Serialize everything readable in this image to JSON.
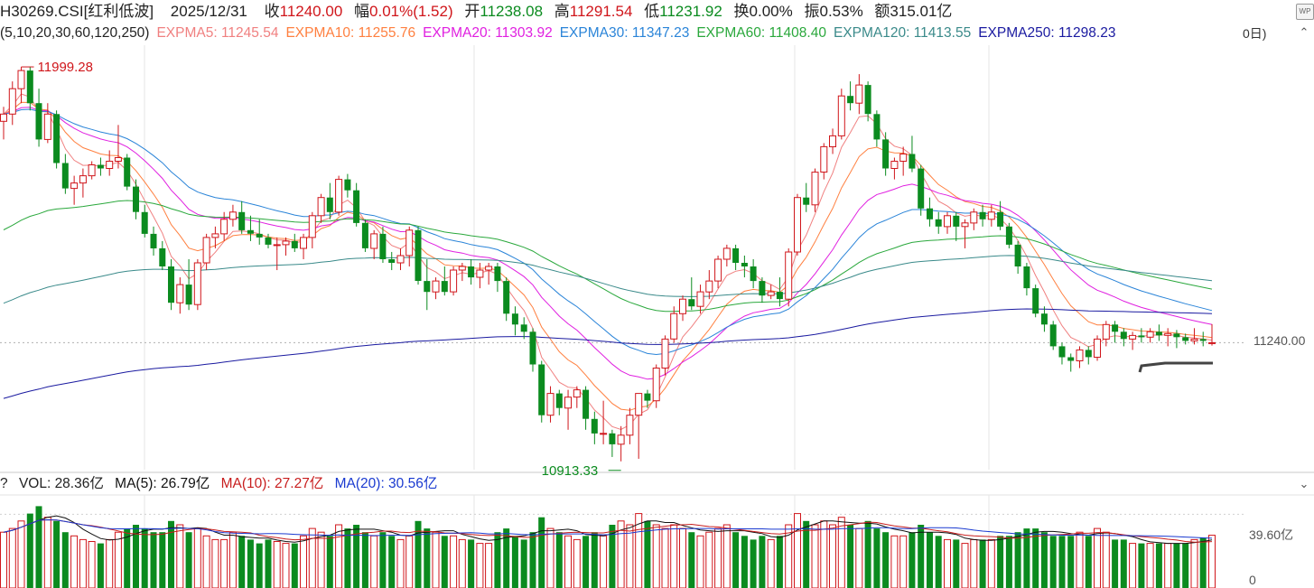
{
  "header": {
    "code": "H30269.CSI[红利低波]",
    "date": "2025/12/31",
    "close_label": "收",
    "close": "11240.00",
    "change_label": "幅",
    "change": "0.01%(1.52)",
    "open_label": "开",
    "open": "11238.08",
    "high_label": "高",
    "high": "11291.54",
    "low_label": "低",
    "low": "11231.92",
    "turnover_label": "换",
    "turnover": "0.00%",
    "amplitude_label": "振",
    "amplitude": "0.53%",
    "amount_label": "额",
    "amount": "315.01亿"
  },
  "ma_line": {
    "params": "(5,10,20,30,60,120,250)",
    "items": [
      {
        "label": "EXPMA5: 11245.54",
        "color": "#f08080"
      },
      {
        "label": "EXPMA10: 11255.76",
        "color": "#ff8040"
      },
      {
        "label": "EXPMA20: 11303.92",
        "color": "#e020e0"
      },
      {
        "label": "EXPMA30: 11347.23",
        "color": "#2a84d8"
      },
      {
        "label": "EXPMA60: 11408.40",
        "color": "#2aa83c"
      },
      {
        "label": "EXPMA120: 11413.55",
        "color": "#3a8a8a"
      },
      {
        "label": "EXPMA250: 11298.23",
        "color": "#1a1aa0"
      }
    ],
    "period_tail": "0日)"
  },
  "volume_line": {
    "prefix": "?",
    "vol": "VOL: 28.36亿",
    "ma5": "MA(5): 26.79亿",
    "ma10": "MA(10): 27.27亿",
    "ma20": "MA(20): 30.56亿"
  },
  "icons": {
    "wp": "WP",
    "chev_up": "⌃",
    "chev_down": "⌄"
  },
  "axis": {
    "price_label": "11240.00",
    "vol_label": "39.60亿",
    "vol_zero": "0"
  },
  "annotations": {
    "high": "11999.28",
    "low": "10913.33"
  },
  "colors": {
    "up": "#d0161b",
    "down": "#0b8b1f",
    "ema5": "#f08080",
    "ema10": "#ff8040",
    "ema20": "#e020e0",
    "ema30": "#2a84d8",
    "ema60": "#2aa83c",
    "ema120": "#3a8a8a",
    "ema250": "#1a1aa0",
    "vma5": "#111111",
    "vma10": "#c81e1e",
    "vma20": "#1a3ad0"
  },
  "chart_data": {
    "type": "candlestick",
    "title": "H30269.CSI[红利低波]",
    "ylim": [
      10890,
      12035
    ],
    "vol_ylim": [
      0,
      50
    ],
    "candles": [
      {
        "o": 11850,
        "h": 11890,
        "l": 11800,
        "c": 11870,
        "v": 30
      },
      {
        "o": 11870,
        "h": 11960,
        "l": 11840,
        "c": 11940,
        "v": 32
      },
      {
        "o": 11940,
        "h": 12000,
        "l": 11900,
        "c": 11990,
        "v": 36
      },
      {
        "o": 11990,
        "h": 11999,
        "l": 11880,
        "c": 11900,
        "v": 40
      },
      {
        "o": 11900,
        "h": 11940,
        "l": 11780,
        "c": 11800,
        "v": 44
      },
      {
        "o": 11800,
        "h": 11900,
        "l": 11790,
        "c": 11870,
        "v": 38
      },
      {
        "o": 11870,
        "h": 11880,
        "l": 11720,
        "c": 11735,
        "v": 36
      },
      {
        "o": 11735,
        "h": 11760,
        "l": 11650,
        "c": 11665,
        "v": 30
      },
      {
        "o": 11665,
        "h": 11700,
        "l": 11620,
        "c": 11680,
        "v": 28
      },
      {
        "o": 11680,
        "h": 11720,
        "l": 11640,
        "c": 11700,
        "v": 26
      },
      {
        "o": 11700,
        "h": 11740,
        "l": 11690,
        "c": 11730,
        "v": 25
      },
      {
        "o": 11730,
        "h": 11750,
        "l": 11700,
        "c": 11720,
        "v": 24
      },
      {
        "o": 11720,
        "h": 11770,
        "l": 11700,
        "c": 11740,
        "v": 26
      },
      {
        "o": 11740,
        "h": 11840,
        "l": 11720,
        "c": 11750,
        "v": 30
      },
      {
        "o": 11750,
        "h": 11760,
        "l": 11660,
        "c": 11670,
        "v": 32
      },
      {
        "o": 11670,
        "h": 11690,
        "l": 11580,
        "c": 11600,
        "v": 34
      },
      {
        "o": 11600,
        "h": 11620,
        "l": 11530,
        "c": 11540,
        "v": 32
      },
      {
        "o": 11540,
        "h": 11560,
        "l": 11480,
        "c": 11500,
        "v": 30
      },
      {
        "o": 11500,
        "h": 11520,
        "l": 11440,
        "c": 11450,
        "v": 30
      },
      {
        "o": 11450,
        "h": 11470,
        "l": 11330,
        "c": 11350,
        "v": 36
      },
      {
        "o": 11350,
        "h": 11420,
        "l": 11320,
        "c": 11400,
        "v": 34
      },
      {
        "o": 11400,
        "h": 11470,
        "l": 11330,
        "c": 11345,
        "v": 30
      },
      {
        "o": 11345,
        "h": 11470,
        "l": 11330,
        "c": 11460,
        "v": 32
      },
      {
        "o": 11460,
        "h": 11540,
        "l": 11440,
        "c": 11530,
        "v": 28
      },
      {
        "o": 11530,
        "h": 11560,
        "l": 11500,
        "c": 11540,
        "v": 26
      },
      {
        "o": 11540,
        "h": 11600,
        "l": 11520,
        "c": 11580,
        "v": 26
      },
      {
        "o": 11580,
        "h": 11620,
        "l": 11560,
        "c": 11600,
        "v": 30
      },
      {
        "o": 11600,
        "h": 11630,
        "l": 11540,
        "c": 11550,
        "v": 28
      },
      {
        "o": 11550,
        "h": 11590,
        "l": 11520,
        "c": 11540,
        "v": 26
      },
      {
        "o": 11540,
        "h": 11580,
        "l": 11510,
        "c": 11530,
        "v": 24
      },
      {
        "o": 11530,
        "h": 11540,
        "l": 11500,
        "c": 11510,
        "v": 26
      },
      {
        "o": 11510,
        "h": 11530,
        "l": 11440,
        "c": 11510,
        "v": 25
      },
      {
        "o": 11510,
        "h": 11530,
        "l": 11480,
        "c": 11520,
        "v": 24
      },
      {
        "o": 11520,
        "h": 11540,
        "l": 11490,
        "c": 11500,
        "v": 24
      },
      {
        "o": 11500,
        "h": 11540,
        "l": 11470,
        "c": 11530,
        "v": 28
      },
      {
        "o": 11530,
        "h": 11600,
        "l": 11500,
        "c": 11590,
        "v": 32
      },
      {
        "o": 11590,
        "h": 11650,
        "l": 11570,
        "c": 11640,
        "v": 30
      },
      {
        "o": 11640,
        "h": 11680,
        "l": 11580,
        "c": 11600,
        "v": 28
      },
      {
        "o": 11600,
        "h": 11700,
        "l": 11590,
        "c": 11690,
        "v": 34
      },
      {
        "o": 11690,
        "h": 11705,
        "l": 11640,
        "c": 11660,
        "v": 32
      },
      {
        "o": 11660,
        "h": 11680,
        "l": 11560,
        "c": 11570,
        "v": 34
      },
      {
        "o": 11570,
        "h": 11580,
        "l": 11490,
        "c": 11500,
        "v": 30
      },
      {
        "o": 11500,
        "h": 11550,
        "l": 11470,
        "c": 11540,
        "v": 28
      },
      {
        "o": 11540,
        "h": 11560,
        "l": 11460,
        "c": 11470,
        "v": 30
      },
      {
        "o": 11470,
        "h": 11490,
        "l": 11440,
        "c": 11460,
        "v": 28
      },
      {
        "o": 11460,
        "h": 11500,
        "l": 11440,
        "c": 11480,
        "v": 26
      },
      {
        "o": 11480,
        "h": 11560,
        "l": 11450,
        "c": 11550,
        "v": 28
      },
      {
        "o": 11550,
        "h": 11560,
        "l": 11400,
        "c": 11410,
        "v": 36
      },
      {
        "o": 11410,
        "h": 11470,
        "l": 11330,
        "c": 11380,
        "v": 32
      },
      {
        "o": 11380,
        "h": 11420,
        "l": 11360,
        "c": 11410,
        "v": 30
      },
      {
        "o": 11410,
        "h": 11450,
        "l": 11370,
        "c": 11380,
        "v": 28
      },
      {
        "o": 11380,
        "h": 11450,
        "l": 11370,
        "c": 11440,
        "v": 28
      },
      {
        "o": 11440,
        "h": 11460,
        "l": 11410,
        "c": 11450,
        "v": 26
      },
      {
        "o": 11450,
        "h": 11470,
        "l": 11400,
        "c": 11420,
        "v": 26
      },
      {
        "o": 11420,
        "h": 11460,
        "l": 11390,
        "c": 11440,
        "v": 24
      },
      {
        "o": 11440,
        "h": 11460,
        "l": 11400,
        "c": 11450,
        "v": 24
      },
      {
        "o": 11450,
        "h": 11460,
        "l": 11380,
        "c": 11410,
        "v": 30
      },
      {
        "o": 11410,
        "h": 11420,
        "l": 11300,
        "c": 11320,
        "v": 32
      },
      {
        "o": 11320,
        "h": 11340,
        "l": 11260,
        "c": 11290,
        "v": 28
      },
      {
        "o": 11290,
        "h": 11310,
        "l": 11250,
        "c": 11270,
        "v": 26
      },
      {
        "o": 11270,
        "h": 11280,
        "l": 11160,
        "c": 11180,
        "v": 30
      },
      {
        "o": 11180,
        "h": 11190,
        "l": 11020,
        "c": 11040,
        "v": 38
      },
      {
        "o": 11040,
        "h": 11120,
        "l": 11020,
        "c": 11100,
        "v": 32
      },
      {
        "o": 11100,
        "h": 11110,
        "l": 11040,
        "c": 11060,
        "v": 30
      },
      {
        "o": 11060,
        "h": 11110,
        "l": 11000,
        "c": 11090,
        "v": 28
      },
      {
        "o": 11090,
        "h": 11120,
        "l": 11060,
        "c": 11110,
        "v": 26
      },
      {
        "o": 11110,
        "h": 11120,
        "l": 11000,
        "c": 11030,
        "v": 28
      },
      {
        "o": 11030,
        "h": 11050,
        "l": 10960,
        "c": 10990,
        "v": 30
      },
      {
        "o": 10990,
        "h": 11080,
        "l": 10960,
        "c": 10990,
        "v": 28
      },
      {
        "o": 10990,
        "h": 11000,
        "l": 10925,
        "c": 10960,
        "v": 34
      },
      {
        "o": 10960,
        "h": 11010,
        "l": 10913,
        "c": 10985,
        "v": 36
      },
      {
        "o": 10985,
        "h": 11060,
        "l": 10960,
        "c": 11040,
        "v": 34
      },
      {
        "o": 11040,
        "h": 11100,
        "l": 10920,
        "c": 11100,
        "v": 40
      },
      {
        "o": 11100,
        "h": 11110,
        "l": 11060,
        "c": 11080,
        "v": 36
      },
      {
        "o": 11080,
        "h": 11180,
        "l": 11060,
        "c": 11170,
        "v": 34
      },
      {
        "o": 11170,
        "h": 11260,
        "l": 11150,
        "c": 11250,
        "v": 32
      },
      {
        "o": 11250,
        "h": 11340,
        "l": 11240,
        "c": 11320,
        "v": 34
      },
      {
        "o": 11320,
        "h": 11370,
        "l": 11300,
        "c": 11360,
        "v": 32
      },
      {
        "o": 11360,
        "h": 11420,
        "l": 11330,
        "c": 11340,
        "v": 30
      },
      {
        "o": 11340,
        "h": 11400,
        "l": 11320,
        "c": 11380,
        "v": 28
      },
      {
        "o": 11380,
        "h": 11440,
        "l": 11360,
        "c": 11410,
        "v": 30
      },
      {
        "o": 11410,
        "h": 11480,
        "l": 11390,
        "c": 11470,
        "v": 32
      },
      {
        "o": 11470,
        "h": 11510,
        "l": 11450,
        "c": 11500,
        "v": 34
      },
      {
        "o": 11500,
        "h": 11510,
        "l": 11440,
        "c": 11460,
        "v": 30
      },
      {
        "o": 11460,
        "h": 11480,
        "l": 11420,
        "c": 11450,
        "v": 28
      },
      {
        "o": 11450,
        "h": 11470,
        "l": 11390,
        "c": 11410,
        "v": 26
      },
      {
        "o": 11410,
        "h": 11420,
        "l": 11350,
        "c": 11370,
        "v": 28
      },
      {
        "o": 11370,
        "h": 11400,
        "l": 11360,
        "c": 11380,
        "v": 26
      },
      {
        "o": 11380,
        "h": 11420,
        "l": 11340,
        "c": 11360,
        "v": 28
      },
      {
        "o": 11360,
        "h": 11500,
        "l": 11340,
        "c": 11490,
        "v": 34
      },
      {
        "o": 11490,
        "h": 11650,
        "l": 11480,
        "c": 11640,
        "v": 40
      },
      {
        "o": 11640,
        "h": 11680,
        "l": 11600,
        "c": 11620,
        "v": 36
      },
      {
        "o": 11620,
        "h": 11720,
        "l": 11600,
        "c": 11710,
        "v": 34
      },
      {
        "o": 11710,
        "h": 11790,
        "l": 11690,
        "c": 11780,
        "v": 36
      },
      {
        "o": 11780,
        "h": 11830,
        "l": 11760,
        "c": 11810,
        "v": 34
      },
      {
        "o": 11810,
        "h": 11940,
        "l": 11800,
        "c": 11920,
        "v": 38
      },
      {
        "o": 11920,
        "h": 11960,
        "l": 11880,
        "c": 11900,
        "v": 34
      },
      {
        "o": 11900,
        "h": 11980,
        "l": 11870,
        "c": 11950,
        "v": 32
      },
      {
        "o": 11950,
        "h": 11960,
        "l": 11850,
        "c": 11870,
        "v": 36
      },
      {
        "o": 11870,
        "h": 11880,
        "l": 11780,
        "c": 11800,
        "v": 32
      },
      {
        "o": 11800,
        "h": 11820,
        "l": 11700,
        "c": 11720,
        "v": 30
      },
      {
        "o": 11720,
        "h": 11750,
        "l": 11690,
        "c": 11740,
        "v": 28
      },
      {
        "o": 11740,
        "h": 11780,
        "l": 11700,
        "c": 11760,
        "v": 28
      },
      {
        "o": 11760,
        "h": 11810,
        "l": 11710,
        "c": 11720,
        "v": 30
      },
      {
        "o": 11720,
        "h": 11730,
        "l": 11590,
        "c": 11610,
        "v": 34
      },
      {
        "o": 11610,
        "h": 11640,
        "l": 11560,
        "c": 11580,
        "v": 30
      },
      {
        "o": 11580,
        "h": 11600,
        "l": 11540,
        "c": 11560,
        "v": 28
      },
      {
        "o": 11560,
        "h": 11600,
        "l": 11540,
        "c": 11590,
        "v": 26
      },
      {
        "o": 11590,
        "h": 11600,
        "l": 11520,
        "c": 11560,
        "v": 26
      },
      {
        "o": 11560,
        "h": 11580,
        "l": 11500,
        "c": 11570,
        "v": 24
      },
      {
        "o": 11570,
        "h": 11610,
        "l": 11550,
        "c": 11600,
        "v": 26
      },
      {
        "o": 11600,
        "h": 11620,
        "l": 11560,
        "c": 11580,
        "v": 26
      },
      {
        "o": 11580,
        "h": 11620,
        "l": 11560,
        "c": 11600,
        "v": 26
      },
      {
        "o": 11600,
        "h": 11630,
        "l": 11550,
        "c": 11560,
        "v": 28
      },
      {
        "o": 11560,
        "h": 11570,
        "l": 11500,
        "c": 11510,
        "v": 28
      },
      {
        "o": 11510,
        "h": 11520,
        "l": 11430,
        "c": 11450,
        "v": 30
      },
      {
        "o": 11450,
        "h": 11460,
        "l": 11370,
        "c": 11390,
        "v": 32
      },
      {
        "o": 11390,
        "h": 11400,
        "l": 11310,
        "c": 11320,
        "v": 32
      },
      {
        "o": 11320,
        "h": 11340,
        "l": 11270,
        "c": 11290,
        "v": 30
      },
      {
        "o": 11290,
        "h": 11300,
        "l": 11220,
        "c": 11230,
        "v": 28
      },
      {
        "o": 11230,
        "h": 11240,
        "l": 11180,
        "c": 11200,
        "v": 28
      },
      {
        "o": 11200,
        "h": 11210,
        "l": 11160,
        "c": 11190,
        "v": 28
      },
      {
        "o": 11190,
        "h": 11230,
        "l": 11170,
        "c": 11220,
        "v": 30
      },
      {
        "o": 11220,
        "h": 11230,
        "l": 11180,
        "c": 11200,
        "v": 28
      },
      {
        "o": 11200,
        "h": 11260,
        "l": 11190,
        "c": 11250,
        "v": 32
      },
      {
        "o": 11250,
        "h": 11300,
        "l": 11230,
        "c": 11290,
        "v": 30
      },
      {
        "o": 11290,
        "h": 11300,
        "l": 11240,
        "c": 11270,
        "v": 26
      },
      {
        "o": 11270,
        "h": 11280,
        "l": 11230,
        "c": 11250,
        "v": 26
      },
      {
        "o": 11250,
        "h": 11270,
        "l": 11220,
        "c": 11260,
        "v": 24
      },
      {
        "o": 11260,
        "h": 11280,
        "l": 11240,
        "c": 11255,
        "v": 24
      },
      {
        "o": 11255,
        "h": 11280,
        "l": 11240,
        "c": 11270,
        "v": 24
      },
      {
        "o": 11270,
        "h": 11290,
        "l": 11245,
        "c": 11260,
        "v": 24
      },
      {
        "o": 11260,
        "h": 11280,
        "l": 11230,
        "c": 11265,
        "v": 24
      },
      {
        "o": 11265,
        "h": 11275,
        "l": 11225,
        "c": 11255,
        "v": 24
      },
      {
        "o": 11255,
        "h": 11265,
        "l": 11235,
        "c": 11245,
        "v": 24
      },
      {
        "o": 11245,
        "h": 11280,
        "l": 11235,
        "c": 11250,
        "v": 26
      },
      {
        "o": 11250,
        "h": 11270,
        "l": 11230,
        "c": 11245,
        "v": 27
      },
      {
        "o": 11238,
        "h": 11291,
        "l": 11232,
        "c": 11240,
        "v": 28.36
      }
    ]
  }
}
